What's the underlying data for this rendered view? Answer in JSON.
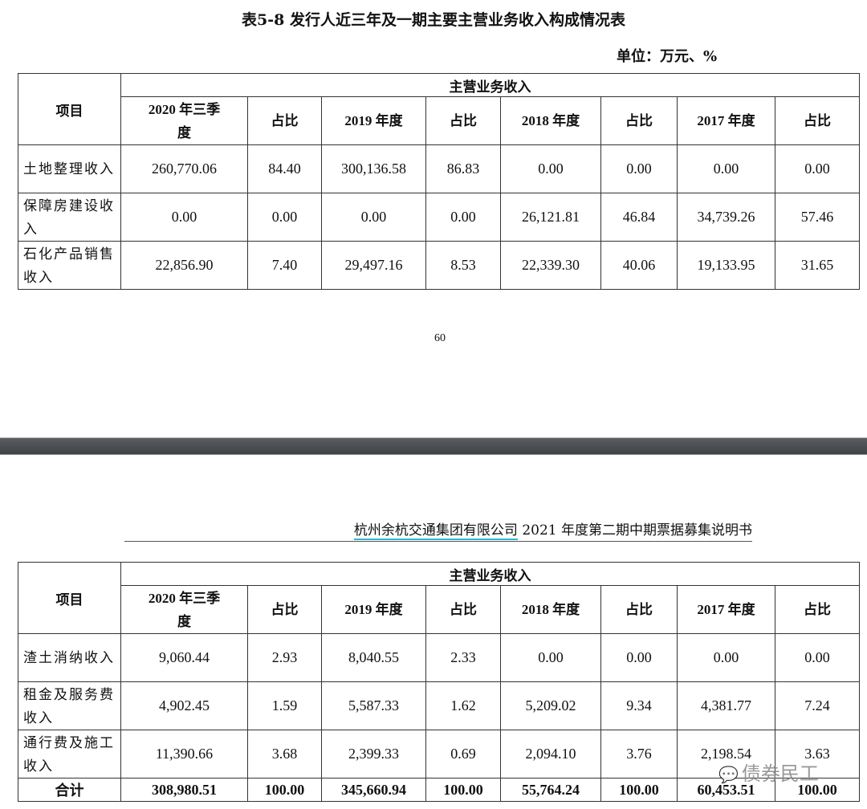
{
  "title": "表5-8 发行人近三年及一期主要主营业务收入构成情况表",
  "unit": "单位：万元、%",
  "page_number": "60",
  "running_header": {
    "company": "杭州余杭交通集团有限公司",
    "doc": "2021 年度第二期中期票据募集说明书"
  },
  "table_header": {
    "item": "项目",
    "group": "主营业务收入",
    "cols": [
      "2020 年三季度",
      "占比",
      "2019 年度",
      "占比",
      "2018 年度",
      "占比",
      "2017 年度",
      "占比"
    ]
  },
  "table1": [
    {
      "label": "土地整理收入",
      "values": [
        "260,770.06",
        "84.40",
        "300,136.58",
        "86.83",
        "0.00",
        "0.00",
        "0.00",
        "0.00"
      ]
    },
    {
      "label": "保障房建设收入",
      "values": [
        "0.00",
        "0.00",
        "0.00",
        "0.00",
        "26,121.81",
        "46.84",
        "34,739.26",
        "57.46"
      ]
    },
    {
      "label": "石化产品销售收入",
      "values": [
        "22,856.90",
        "7.40",
        "29,497.16",
        "8.53",
        "22,339.30",
        "40.06",
        "19,133.95",
        "31.65"
      ]
    }
  ],
  "table2": [
    {
      "label": "渣土消纳收入",
      "values": [
        "9,060.44",
        "2.93",
        "8,040.55",
        "2.33",
        "0.00",
        "0.00",
        "0.00",
        "0.00"
      ]
    },
    {
      "label": "租金及服务费收入",
      "values": [
        "4,902.45",
        "1.59",
        "5,587.33",
        "1.62",
        "5,209.02",
        "9.34",
        "4,381.77",
        "7.24"
      ]
    },
    {
      "label": "通行费及施工收入",
      "values": [
        "11,390.66",
        "3.68",
        "2,399.33",
        "0.69",
        "2,094.10",
        "3.76",
        "2,198.54",
        "3.63"
      ]
    }
  ],
  "total": {
    "label": "合计",
    "values": [
      "308,980.51",
      "100.00",
      "345,660.94",
      "100.00",
      "55,764.24",
      "100.00",
      "60,453.51",
      "100.00"
    ]
  },
  "watermark": "债券民工"
}
